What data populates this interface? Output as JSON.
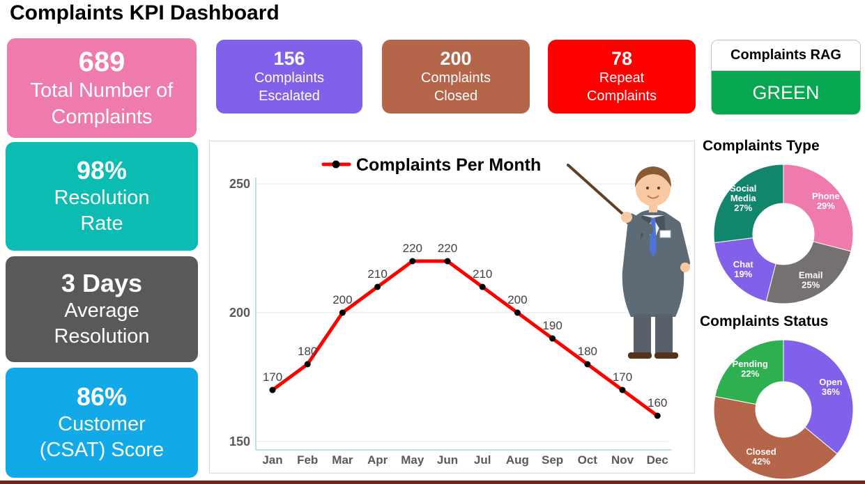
{
  "title": "Complaints KPI Dashboard",
  "kpi_cards": [
    {
      "value": "689",
      "label": "Total Number of Complaints",
      "color": "#ee7bac"
    },
    {
      "value": "156",
      "label": "Complaints Escalated",
      "color": "#8161ea"
    },
    {
      "value": "200",
      "label": "Complaints Closed",
      "color": "#b5654a"
    },
    {
      "value": "78",
      "label": "Repeat Complaints",
      "color": "#ff0000"
    }
  ],
  "rag_card": {
    "title": "Complaints RAG",
    "status": "GREEN",
    "status_color": "#07a650"
  },
  "side_cards": [
    {
      "value": "98%",
      "label": "Resolution Rate",
      "color": "#0bbcb2"
    },
    {
      "value": "3 Days",
      "label": "Average Resolution",
      "color": "#595959"
    },
    {
      "value": "86%",
      "label": "Customer (CSAT) Score",
      "color": "#12a9e9"
    }
  ],
  "chart_data": [
    {
      "type": "line",
      "title": "Complaints Per Month",
      "categories": [
        "Jan",
        "Feb",
        "Mar",
        "Apr",
        "May",
        "Jun",
        "Jul",
        "Aug",
        "Sep",
        "Oct",
        "Nov",
        "Dec"
      ],
      "values": [
        170,
        180,
        200,
        210,
        220,
        220,
        210,
        200,
        190,
        180,
        170,
        160
      ],
      "xlabel": "",
      "ylabel": "",
      "ylim": [
        150,
        250
      ],
      "yticks": [
        150,
        200,
        250
      ],
      "grid": true,
      "legend_position": "top",
      "line_color": "#ff0000",
      "marker_color": "#000000",
      "axis_color": "#9fd5dd",
      "data_labels": true
    },
    {
      "type": "pie",
      "donut": true,
      "title": "Complaints Type",
      "start_angle": "top",
      "direction": "clockwise",
      "inner_radius_ratio": 0.44,
      "legend_position": "none",
      "slices": [
        {
          "label": "Phone",
          "value": 29,
          "color": "#ee7bac",
          "label_lines": [
            "Phone",
            "29%"
          ]
        },
        {
          "label": "Email",
          "value": 25,
          "color": "#767171",
          "label_lines": [
            "Email",
            "25%"
          ]
        },
        {
          "label": "Chat",
          "value": 19,
          "color": "#8161ea",
          "label_lines": [
            "Chat",
            "19%"
          ]
        },
        {
          "label": "Social Media",
          "value": 27,
          "color": "#11866d",
          "label_lines": [
            "Social",
            "Media",
            "27%"
          ]
        }
      ]
    },
    {
      "type": "pie",
      "donut": true,
      "title": "Complaints Status",
      "start_angle": "top",
      "direction": "clockwise",
      "inner_radius_ratio": 0.4,
      "legend_position": "none",
      "slices": [
        {
          "label": "Open",
          "value": 36,
          "color": "#8161ea",
          "label_lines": [
            "Open",
            "36%"
          ]
        },
        {
          "label": "Closed",
          "value": 42,
          "color": "#b5654a",
          "label_lines": [
            "Closed",
            "42%"
          ]
        },
        {
          "label": "Pending",
          "value": 22,
          "color": "#2fb050",
          "label_lines": [
            "Pending",
            "22%"
          ]
        }
      ]
    }
  ]
}
